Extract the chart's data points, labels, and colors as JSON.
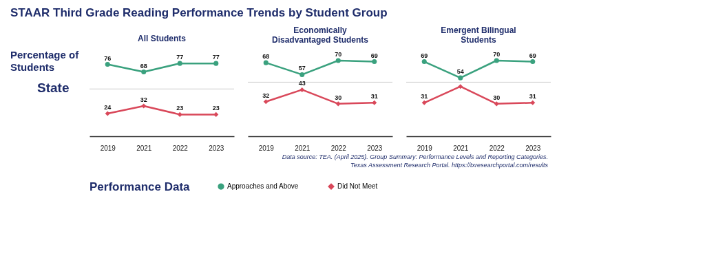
{
  "chart_data": [
    {
      "type": "line",
      "title": "All Students",
      "ylabel": "State",
      "legend_title": "Performance Data",
      "annotations": [
        "STAAR Third Grade Reading Performance Trends by Student Group",
        "Percentage of Students"
      ],
      "categories": [
        "2019",
        "2021",
        "2022",
        "2023"
      ],
      "ref_lines": [
        {
          "axis": "y",
          "value": 50,
          "color": "#cccccc"
        }
      ],
      "tick_labels": "x",
      "data_labels": true,
      "legend": "bottom",
      "marker": "circle",
      "series": [
        {
          "name": "Approaches and Above",
          "color": "#3aa17e",
          "marker": "circle",
          "values": [
            76,
            68,
            77,
            77
          ]
        },
        {
          "name": "Did Not Meet",
          "color": "#d9485a",
          "marker": "diamond",
          "values": [
            24,
            32,
            23,
            23
          ]
        }
      ]
    },
    {
      "type": "line",
      "title": "Economically Disadvantaged Students",
      "categories": [
        "2019",
        "2021",
        "2022",
        "2023"
      ],
      "ref_lines": [
        {
          "axis": "y",
          "value": 50,
          "color": "#cccccc"
        }
      ],
      "tick_labels": "x",
      "data_labels": true,
      "marker": "circle",
      "series": [
        {
          "name": "Approaches and Above",
          "color": "#3aa17e",
          "marker": "circle",
          "values": [
            68,
            57,
            70,
            69
          ]
        },
        {
          "name": "Did Not Meet",
          "color": "#d9485a",
          "marker": "diamond",
          "values": [
            32,
            43,
            30,
            31
          ]
        }
      ]
    },
    {
      "type": "line",
      "title": "Emergent Bilingual Students",
      "annotations": [
        "Data source: TEA. (April 2025). Group Summary: Performance Levels and Reporting Categories.",
        "Texas Assessment Research Portal. https://txresearchportal.com/results"
      ],
      "categories": [
        "2019",
        "2021",
        "2022",
        "2023"
      ],
      "ref_lines": [
        {
          "axis": "y",
          "value": 50,
          "color": "#cccccc"
        }
      ],
      "tick_labels": "x",
      "marker": "circle",
      "series": [
        {
          "name": "Approaches and Above",
          "color": "#3aa17e",
          "marker": "circle",
          "values": [
            69,
            54,
            70,
            69
          ],
          "value_labels": [
            "69",
            "54",
            "70",
            "69"
          ]
        },
        {
          "name": "Did Not Meet",
          "color": "#d9485a",
          "marker": "diamond",
          "values": [
            31,
            46,
            30,
            31
          ],
          "value_labels": [
            "31",
            null,
            "30",
            "31"
          ]
        }
      ]
    }
  ]
}
